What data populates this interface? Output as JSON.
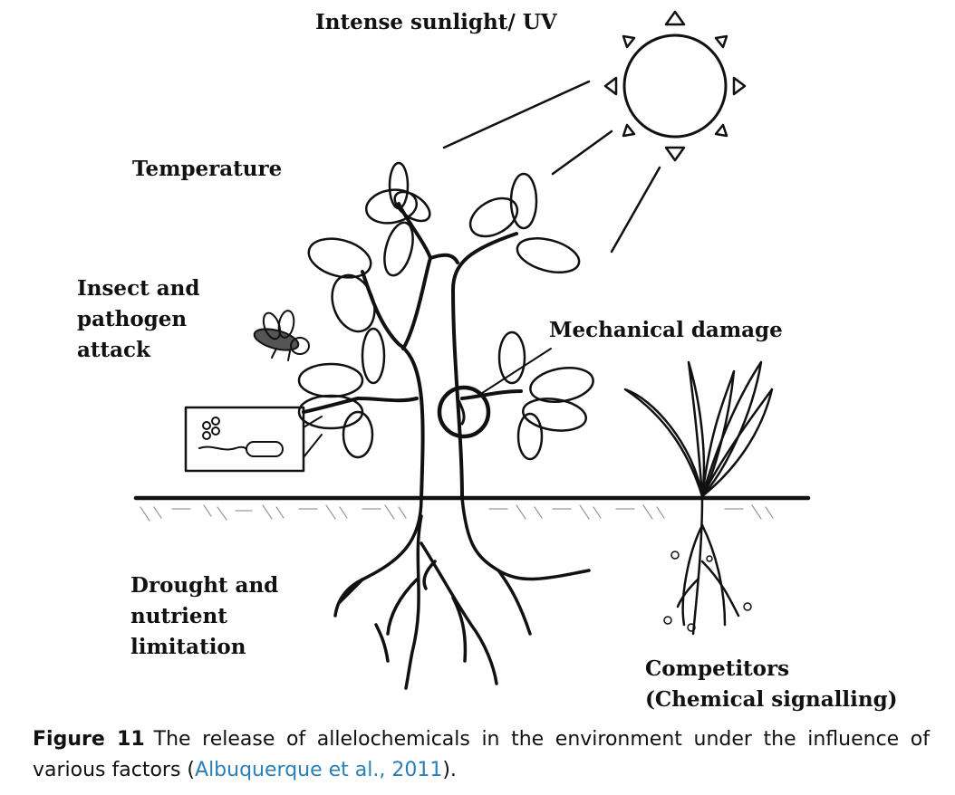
{
  "labels": {
    "sunlight": "Intense sunlight/ UV",
    "temperature": "Temperature",
    "insect": [
      "Insect and",
      "pathogen",
      "attack"
    ],
    "mechanical": "Mechanical damage",
    "drought": [
      "Drought and",
      "nutrient",
      "limitation"
    ],
    "competitors": [
      "Competitors",
      "(Chemical signalling)"
    ]
  },
  "caption": {
    "figure_label": "Figure 11",
    "text_before": "The release of allelochemicals in the environment under the influence of various factors (",
    "citation": "Albuquerque et al., 2011",
    "text_after": ")."
  },
  "colors": {
    "ink": "#111111",
    "citation_link": "#2a7fb6"
  }
}
